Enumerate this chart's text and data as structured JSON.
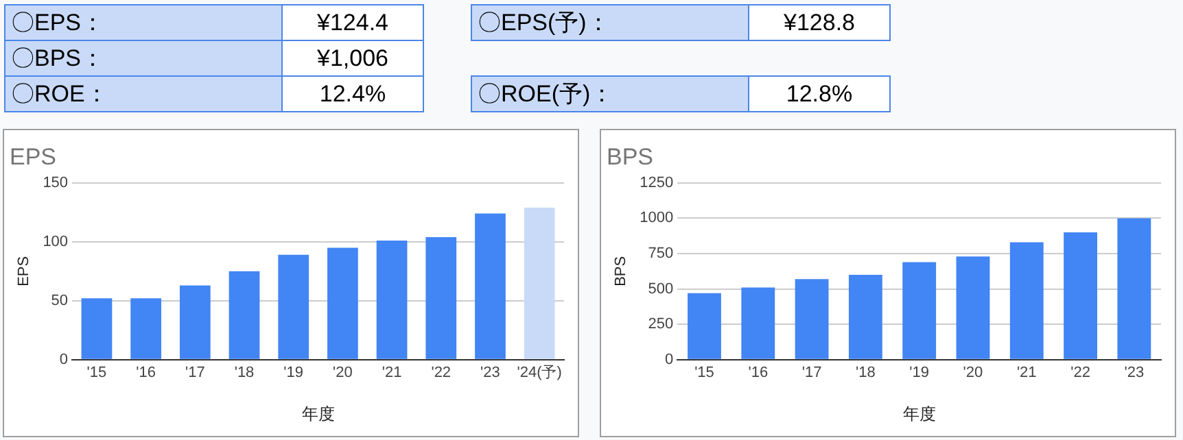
{
  "chart_data": [
    {
      "type": "other",
      "annotations": [
        "〇EPS：",
        "¥124.4",
        "〇BPS：",
        "¥1,006",
        "〇ROE：",
        "12.4%",
        "〇EPS(予)：",
        "¥128.8",
        "〇ROE(予)：",
        "12.8%"
      ]
    },
    {
      "type": "bar",
      "title": "EPS",
      "xlabel": "年度",
      "ylabel": "EPS",
      "categories": [
        "'15",
        "'16",
        "'17",
        "'18",
        "'19",
        "'20",
        "'21",
        "'22",
        "'23",
        "'24(予)"
      ],
      "values": [
        52,
        52,
        63,
        75,
        89,
        95,
        101,
        104,
        124,
        129
      ],
      "colors": [
        "#4285f4",
        "#4285f4",
        "#4285f4",
        "#4285f4",
        "#4285f4",
        "#4285f4",
        "#4285f4",
        "#4285f4",
        "#4285f4",
        "#c9daf8"
      ],
      "ylim": [
        0,
        150
      ],
      "yticks": [
        0,
        50,
        100,
        150
      ],
      "grid": "y",
      "legend": false
    },
    {
      "type": "bar",
      "title": "BPS",
      "xlabel": "年度",
      "ylabel": "BPS",
      "categories": [
        "'15",
        "'16",
        "'17",
        "'18",
        "'19",
        "'20",
        "'21",
        "'22",
        "'23"
      ],
      "values": [
        470,
        510,
        570,
        600,
        690,
        730,
        830,
        900,
        1000
      ],
      "color": "#4285f4",
      "ylim": [
        0,
        1250
      ],
      "yticks": [
        0,
        250,
        500,
        750,
        1000,
        1250
      ],
      "grid": "y",
      "legend": false
    }
  ]
}
